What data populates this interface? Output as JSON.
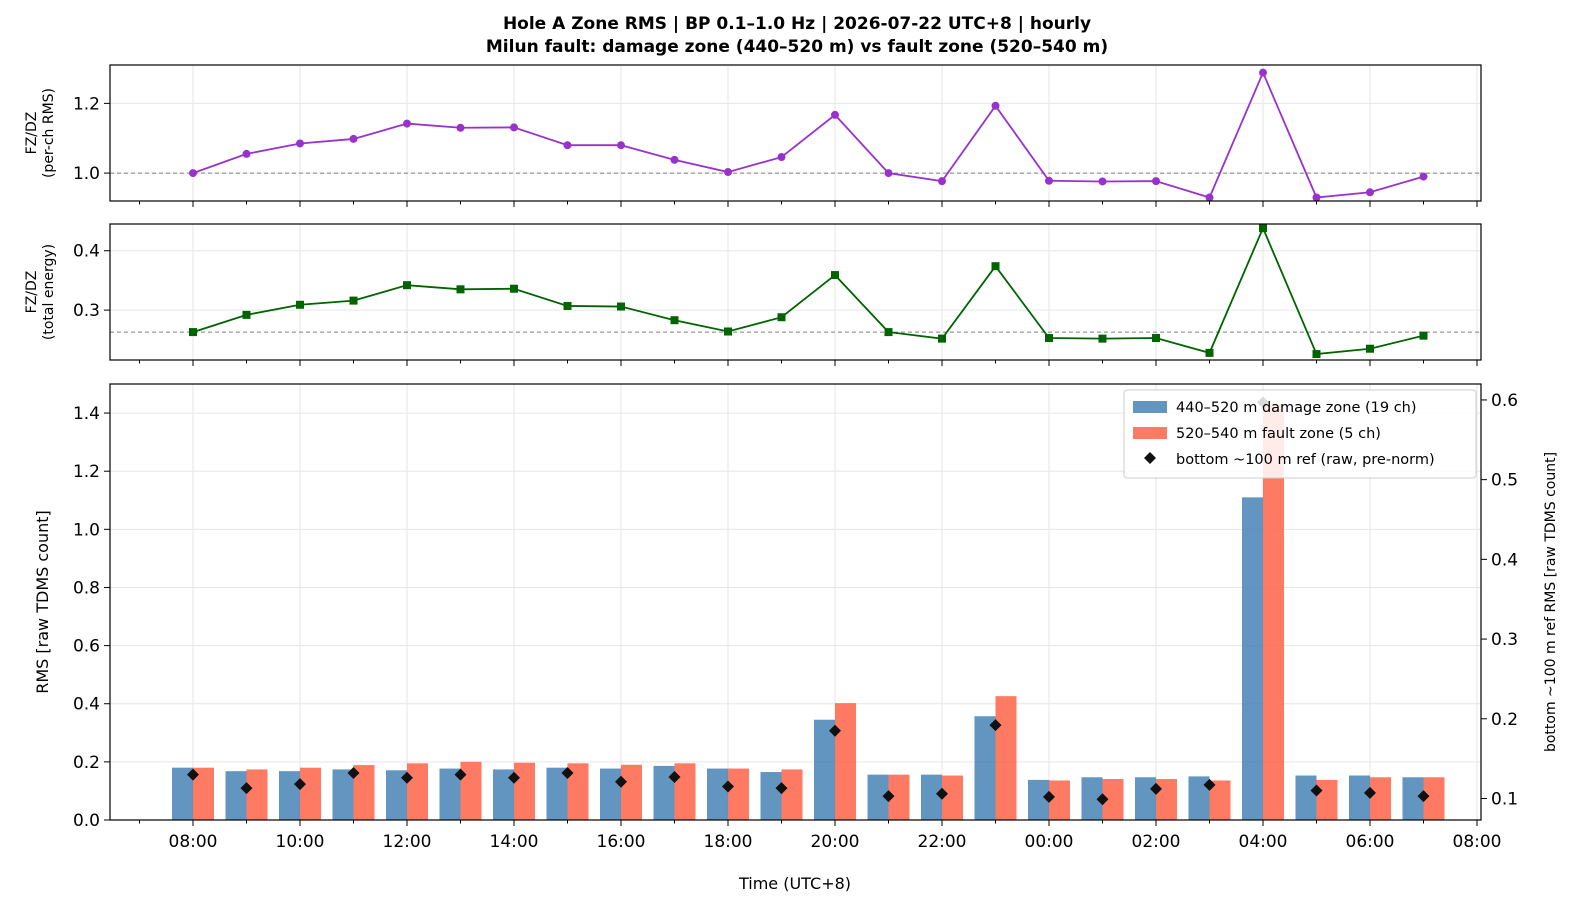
{
  "chart_data": {
    "title": "Hole A Zone RMS  |  BP 0.1–1.0 Hz  |  2026-07-22 UTC+8  |  hourly",
    "subtitle": "Milun fault: damage zone (440–520 m) vs fault zone (520–540 m)",
    "xlabel": "Time (UTC+8)",
    "x_tick_labels": [
      "08:00",
      "10:00",
      "12:00",
      "14:00",
      "16:00",
      "18:00",
      "20:00",
      "22:00",
      "00:00",
      "02:00",
      "04:00",
      "06:00",
      "08:00"
    ],
    "hours": [
      "08:00",
      "09:00",
      "10:00",
      "11:00",
      "12:00",
      "13:00",
      "14:00",
      "15:00",
      "16:00",
      "17:00",
      "18:00",
      "19:00",
      "20:00",
      "21:00",
      "22:00",
      "23:00",
      "00:00",
      "01:00",
      "02:00",
      "03:00",
      "04:00",
      "05:00",
      "06:00",
      "07:00"
    ],
    "panels": [
      {
        "type": "line",
        "ylabel_lines": [
          "FZ/DZ",
          "(per-ch RMS)"
        ],
        "ylim": [
          0.92,
          1.31
        ],
        "yticks": [
          1.0,
          1.2
        ],
        "ytick_labels": [
          "1.0",
          "1.2"
        ],
        "reference_line": 1.0,
        "color": "#9932CC",
        "marker": "circle",
        "values": [
          1.0,
          1.055,
          1.085,
          1.098,
          1.142,
          1.13,
          1.131,
          1.08,
          1.08,
          1.038,
          1.003,
          1.046,
          1.167,
          1.0,
          0.977,
          1.193,
          0.978,
          0.976,
          0.977,
          0.93,
          1.288,
          0.93,
          0.945,
          0.99
        ]
      },
      {
        "type": "line",
        "ylabel_lines": [
          "FZ/DZ",
          "(total energy)"
        ],
        "ylim": [
          0.216,
          0.445
        ],
        "yticks": [
          0.3,
          0.4
        ],
        "ytick_labels": [
          "0.3",
          "0.4"
        ],
        "reference_line": 0.263,
        "color": "#006400",
        "marker": "square",
        "values": [
          0.263,
          0.292,
          0.309,
          0.316,
          0.342,
          0.335,
          0.336,
          0.307,
          0.306,
          0.283,
          0.264,
          0.288,
          0.359,
          0.263,
          0.252,
          0.374,
          0.253,
          0.252,
          0.253,
          0.228,
          0.438,
          0.226,
          0.235,
          0.257
        ]
      },
      {
        "type": "bar",
        "ylabel": "RMS  [raw TDMS count]",
        "ylim": [
          0,
          1.5
        ],
        "yticks": [
          0.0,
          0.2,
          0.4,
          0.6,
          0.8,
          1.0,
          1.2,
          1.4
        ],
        "ytick_labels": [
          "0.0",
          "0.2",
          "0.4",
          "0.6",
          "0.8",
          "1.0",
          "1.2",
          "1.4"
        ],
        "ylabel_right": "bottom ~100 m ref RMS  [raw TDMS count]",
        "ylim_right": [
          0.073,
          0.62
        ],
        "yticks_right": [
          0.1,
          0.2,
          0.3,
          0.4,
          0.5,
          0.6
        ],
        "ytick_labels_right": [
          "0.1",
          "0.2",
          "0.3",
          "0.4",
          "0.5",
          "0.6"
        ],
        "legend_position": "top-right",
        "series": [
          {
            "name": "440–520 m  damage zone (19 ch)",
            "color": "#4682B4",
            "values": [
              0.18,
              0.168,
              0.168,
              0.174,
              0.171,
              0.177,
              0.174,
              0.18,
              0.177,
              0.186,
              0.177,
              0.165,
              0.345,
              0.156,
              0.156,
              0.357,
              0.138,
              0.147,
              0.147,
              0.15,
              1.11,
              0.153,
              0.153,
              0.147
            ]
          },
          {
            "name": "520–540 m  fault zone (5 ch)",
            "color": "#FF6347",
            "values": [
              0.18,
              0.174,
              0.18,
              0.189,
              0.195,
              0.2,
              0.197,
              0.195,
              0.19,
              0.195,
              0.177,
              0.174,
              0.402,
              0.156,
              0.153,
              0.426,
              0.136,
              0.141,
              0.141,
              0.136,
              1.43,
              0.138,
              0.147,
              0.147
            ]
          },
          {
            "name": "bottom ~100 m ref (raw, pre-norm)",
            "color": "#111111",
            "axis": "right",
            "marker": "diamond",
            "values": [
              0.13,
              0.113,
              0.118,
              0.132,
              0.126,
              0.13,
              0.126,
              0.132,
              0.121,
              0.127,
              0.115,
              0.113,
              0.185,
              0.103,
              0.106,
              0.192,
              0.102,
              0.099,
              0.112,
              0.117,
              0.597,
              0.11,
              0.107,
              0.103
            ]
          }
        ]
      }
    ]
  }
}
